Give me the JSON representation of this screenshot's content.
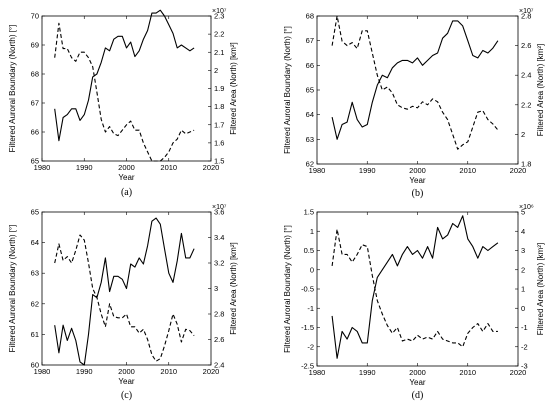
{
  "chart_data": [
    {
      "type": "line",
      "panel_label": "(a)",
      "xlabel": "Year",
      "ylabel_left": "Filtered Auroral Boundary (North) [°]",
      "ylabel_right": "Filtered Area (North) [km²]",
      "right_multiplier": "×10⁷",
      "xlim": [
        1980,
        2020
      ],
      "x_ticks": [
        "1980",
        "1990",
        "2000",
        "2010",
        "2020"
      ],
      "ylim_left": [
        65,
        70
      ],
      "y_ticks_left": [
        "65",
        "66",
        "67",
        "68",
        "69",
        "70"
      ],
      "ylim_right": [
        1.5,
        2.3
      ],
      "y_ticks_right": [
        "1.5",
        "1.6",
        "1.7",
        "1.8",
        "1.9",
        "2",
        "2.1",
        "2.2",
        "2.3"
      ],
      "grid": false,
      "series": [
        {
          "style": "solid",
          "axis": "left",
          "x": [
            1983,
            1984,
            1985,
            1986,
            1987,
            1988,
            1989,
            1990,
            1991,
            1992,
            1993,
            1994,
            1995,
            1996,
            1997,
            1998,
            1999,
            2000,
            2001,
            2002,
            2003,
            2004,
            2005,
            2006,
            2007,
            2008,
            2009,
            2010,
            2011,
            2012,
            2013,
            2014,
            2015,
            2016
          ],
          "y": [
            66.8,
            65.7,
            66.5,
            66.6,
            66.8,
            66.8,
            66.4,
            66.6,
            67.1,
            67.9,
            68.0,
            68.4,
            68.9,
            68.8,
            69.2,
            69.3,
            69.3,
            68.9,
            69.1,
            68.6,
            68.8,
            69.2,
            69.5,
            70.1,
            70.1,
            70.2,
            70.0,
            69.7,
            69.4,
            68.9,
            69.0,
            68.9,
            68.8,
            68.9
          ]
        },
        {
          "style": "dashed",
          "axis": "right",
          "x": [
            1983,
            1984,
            1985,
            1986,
            1987,
            1988,
            1989,
            1990,
            1991,
            1992,
            1993,
            1994,
            1995,
            1996,
            1997,
            1998,
            1999,
            2000,
            2001,
            2002,
            2003,
            2004,
            2005,
            2006,
            2007,
            2008,
            2009,
            2010,
            2011,
            2012,
            2013,
            2014,
            2015,
            2016
          ],
          "y": [
            2.07,
            2.26,
            2.12,
            2.12,
            2.07,
            2.05,
            2.1,
            2.1,
            2.07,
            2.02,
            1.88,
            1.73,
            1.66,
            1.69,
            1.65,
            1.64,
            1.67,
            1.7,
            1.72,
            1.67,
            1.67,
            1.6,
            1.55,
            1.5,
            1.5,
            1.5,
            1.52,
            1.55,
            1.6,
            1.62,
            1.67,
            1.65,
            1.66,
            1.67
          ]
        }
      ]
    },
    {
      "type": "line",
      "panel_label": "(b)",
      "xlabel": "Year",
      "ylabel_left": "Filtered Auroral Boundary (North) [°]",
      "ylabel_right": "Filtered Area (North) [km²]",
      "right_multiplier": "×10⁷",
      "xlim": [
        1980,
        2020
      ],
      "x_ticks": [
        "1980",
        "1990",
        "2000",
        "2010",
        "2020"
      ],
      "ylim_left": [
        62,
        68
      ],
      "y_ticks_left": [
        "62",
        "63",
        "64",
        "65",
        "66",
        "67",
        "68"
      ],
      "ylim_right": [
        1.8,
        2.8
      ],
      "y_ticks_right": [
        "1.8",
        "2",
        "2.2",
        "2.4",
        "2.6",
        "2.8"
      ],
      "grid": false,
      "series": [
        {
          "style": "solid",
          "axis": "left",
          "x": [
            1983,
            1984,
            1985,
            1986,
            1987,
            1988,
            1989,
            1990,
            1991,
            1992,
            1993,
            1994,
            1995,
            1996,
            1997,
            1998,
            1999,
            2000,
            2001,
            2002,
            2003,
            2004,
            2005,
            2006,
            2007,
            2008,
            2009,
            2010,
            2011,
            2012,
            2013,
            2014,
            2015,
            2016
          ],
          "y": [
            63.9,
            63.0,
            63.6,
            63.7,
            64.5,
            63.8,
            63.5,
            63.6,
            64.5,
            65.2,
            65.6,
            65.5,
            65.9,
            66.1,
            66.2,
            66.2,
            66.1,
            66.3,
            66.0,
            66.2,
            66.4,
            66.5,
            67.1,
            67.3,
            67.8,
            67.8,
            67.6,
            67.0,
            66.4,
            66.3,
            66.6,
            66.5,
            66.7,
            67.0
          ]
        },
        {
          "style": "dashed",
          "axis": "right",
          "x": [
            1983,
            1984,
            1985,
            1986,
            1987,
            1988,
            1989,
            1990,
            1991,
            1992,
            1993,
            1994,
            1995,
            1996,
            1997,
            1998,
            1999,
            2000,
            2001,
            2002,
            2003,
            2004,
            2005,
            2006,
            2007,
            2008,
            2009,
            2010,
            2011,
            2012,
            2013,
            2014,
            2015,
            2016
          ],
          "y": [
            2.6,
            2.8,
            2.63,
            2.6,
            2.62,
            2.58,
            2.7,
            2.7,
            2.55,
            2.4,
            2.3,
            2.32,
            2.28,
            2.2,
            2.18,
            2.17,
            2.19,
            2.18,
            2.22,
            2.2,
            2.24,
            2.22,
            2.15,
            2.1,
            2.0,
            1.9,
            1.93,
            1.95,
            2.05,
            2.15,
            2.16,
            2.1,
            2.07,
            2.03
          ]
        }
      ]
    },
    {
      "type": "line",
      "panel_label": "(c)",
      "xlabel": "Year",
      "ylabel_left": "Filtered Auroral Boundary (North) [°]",
      "ylabel_right": "Filtered Area (North) [km²]",
      "right_multiplier": "×10⁷",
      "xlim": [
        1980,
        2020
      ],
      "x_ticks": [
        "1980",
        "1990",
        "2000",
        "2010",
        "2020"
      ],
      "ylim_left": [
        60,
        65
      ],
      "y_ticks_left": [
        "60",
        "61",
        "62",
        "63",
        "64",
        "65"
      ],
      "ylim_right": [
        2.4,
        3.6
      ],
      "y_ticks_right": [
        "2.4",
        "2.6",
        "2.8",
        "3",
        "3.2",
        "3.4",
        "3.6"
      ],
      "grid": false,
      "series": [
        {
          "style": "solid",
          "axis": "left",
          "x": [
            1983,
            1984,
            1985,
            1986,
            1987,
            1988,
            1989,
            1990,
            1991,
            1992,
            1993,
            1994,
            1995,
            1996,
            1997,
            1998,
            1999,
            2000,
            2001,
            2002,
            2003,
            2004,
            2005,
            2006,
            2007,
            2008,
            2009,
            2010,
            2011,
            2012,
            2013,
            2014,
            2015,
            2016
          ],
          "y": [
            61.3,
            60.4,
            61.3,
            60.8,
            61.2,
            60.8,
            60.1,
            60.0,
            61.0,
            62.3,
            62.2,
            62.7,
            63.5,
            62.4,
            62.9,
            62.9,
            62.8,
            62.5,
            63.3,
            63.2,
            63.5,
            63.3,
            63.9,
            64.7,
            64.8,
            64.6,
            63.8,
            63.0,
            62.7,
            63.4,
            64.3,
            63.5,
            63.5,
            63.8
          ]
        },
        {
          "style": "dashed",
          "axis": "right",
          "x": [
            1983,
            1984,
            1985,
            1986,
            1987,
            1988,
            1989,
            1990,
            1991,
            1992,
            1993,
            1994,
            1995,
            1996,
            1997,
            1998,
            1999,
            2000,
            2001,
            2002,
            2003,
            2004,
            2005,
            2006,
            2007,
            2008,
            2009,
            2010,
            2011,
            2012,
            2013,
            2014,
            2015,
            2016
          ],
          "y": [
            3.2,
            3.35,
            3.22,
            3.25,
            3.2,
            3.3,
            3.42,
            3.38,
            3.2,
            3.0,
            2.93,
            2.8,
            2.7,
            2.88,
            2.78,
            2.77,
            2.77,
            2.8,
            2.7,
            2.7,
            2.65,
            2.68,
            2.6,
            2.48,
            2.43,
            2.45,
            2.55,
            2.67,
            2.8,
            2.72,
            2.58,
            2.68,
            2.67,
            2.63
          ]
        }
      ]
    },
    {
      "type": "line",
      "panel_label": "(d)",
      "xlabel": "Year",
      "ylabel_left": "Filtered Auroral Boundary (North) [°]",
      "ylabel_right": "Filtered Area (North) [km²]",
      "right_multiplier": "×10⁶",
      "xlim": [
        1980,
        2020
      ],
      "x_ticks": [
        "1980",
        "1990",
        "2000",
        "2010",
        "2020"
      ],
      "ylim_left": [
        -2.5,
        1.5
      ],
      "y_ticks_left": [
        "-2.5",
        "-2",
        "-1.5",
        "-1",
        "-0.5",
        "0",
        "0.5",
        "1",
        "1.5"
      ],
      "ylim_right": [
        -3,
        5
      ],
      "y_ticks_right": [
        "-3",
        "-2",
        "-1",
        "0",
        "1",
        "2",
        "3",
        "4",
        "5"
      ],
      "grid": false,
      "series": [
        {
          "style": "solid",
          "axis": "left",
          "x": [
            1983,
            1984,
            1985,
            1986,
            1987,
            1988,
            1989,
            1990,
            1991,
            1992,
            1993,
            1994,
            1995,
            1996,
            1997,
            1998,
            1999,
            2000,
            2001,
            2002,
            2003,
            2004,
            2005,
            2006,
            2007,
            2008,
            2009,
            2010,
            2011,
            2012,
            2013,
            2014,
            2015,
            2016
          ],
          "y": [
            -1.2,
            -2.3,
            -1.6,
            -1.8,
            -1.5,
            -1.6,
            -1.9,
            -1.9,
            -0.8,
            -0.2,
            0.0,
            0.2,
            0.4,
            0.1,
            0.4,
            0.6,
            0.4,
            0.5,
            0.3,
            0.6,
            0.3,
            1.1,
            0.8,
            0.9,
            1.2,
            1.1,
            1.4,
            0.8,
            0.6,
            0.3,
            0.6,
            0.5,
            0.6,
            0.7
          ]
        },
        {
          "style": "dashed",
          "axis": "right",
          "x": [
            1983,
            1984,
            1985,
            1986,
            1987,
            1988,
            1989,
            1990,
            1991,
            1992,
            1993,
            1994,
            1995,
            1996,
            1997,
            1998,
            1999,
            2000,
            2001,
            2002,
            2003,
            2004,
            2005,
            2006,
            2007,
            2008,
            2009,
            2010,
            2011,
            2012,
            2013,
            2014,
            2015,
            2016
          ],
          "y": [
            2.2,
            4.1,
            2.8,
            2.8,
            2.4,
            2.8,
            3.3,
            3.2,
            1.7,
            0.4,
            -0.3,
            -0.9,
            -1.3,
            -1.0,
            -1.7,
            -1.6,
            -1.7,
            -1.4,
            -1.6,
            -1.5,
            -1.6,
            -1.2,
            -1.6,
            -1.7,
            -1.8,
            -1.8,
            -2.0,
            -1.3,
            -1.0,
            -0.8,
            -1.2,
            -0.8,
            -1.2,
            -1.2
          ]
        }
      ]
    }
  ]
}
